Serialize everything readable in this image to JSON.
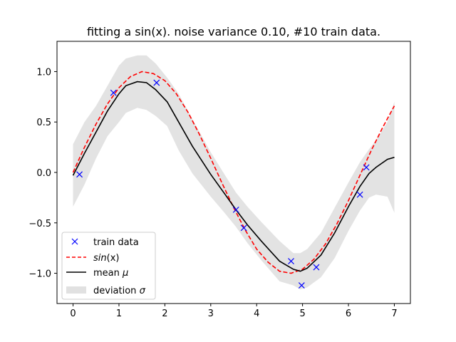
{
  "chart_data": {
    "type": "line",
    "title": "fitting a sin(x). noise variance 0.10, #10 train data.",
    "xlabel": "",
    "ylabel": "",
    "xlim": [
      -0.35,
      7.35
    ],
    "ylim": [
      -1.3,
      1.3
    ],
    "xticks": [
      0,
      1,
      2,
      3,
      4,
      5,
      6,
      7
    ],
    "xtick_labels": [
      "0",
      "1",
      "2",
      "3",
      "4",
      "5",
      "6",
      "7"
    ],
    "yticks": [
      1.0,
      0.5,
      0.0,
      -0.5,
      -1.0
    ],
    "ytick_labels": [
      "1.0",
      "0.5",
      "0.0",
      "−0.5",
      "−1.0"
    ],
    "grid": false,
    "legend_position": "lower-left",
    "colors": {
      "train": "#0000ff",
      "sin": "#ff0000",
      "mean": "#000000",
      "band": "#d9d9d9",
      "frame": "#000000"
    },
    "legend": {
      "train": "train data",
      "sin_italic": "sin",
      "sin_tail": "(x)",
      "mean_prefix": "mean ",
      "mean_symbol": "μ",
      "dev_prefix": "deviation ",
      "dev_symbol": "σ"
    },
    "train_data": {
      "x": [
        0.14,
        0.88,
        1.82,
        3.55,
        3.72,
        4.75,
        4.98,
        5.3,
        6.25,
        6.39
      ],
      "y": [
        -0.02,
        0.79,
        0.89,
        -0.37,
        -0.55,
        -0.88,
        -1.12,
        -0.94,
        -0.22,
        0.05
      ]
    },
    "sin_curve": {
      "x": [
        0.0,
        0.25,
        0.5,
        0.75,
        1.0,
        1.25,
        1.5,
        1.75,
        2.0,
        2.25,
        2.5,
        2.75,
        3.0,
        3.25,
        3.5,
        3.75,
        4.0,
        4.25,
        4.5,
        4.75,
        5.0,
        5.25,
        5.5,
        5.75,
        6.0,
        6.25,
        6.5,
        6.75,
        7.0
      ],
      "y": [
        0.0,
        0.25,
        0.48,
        0.68,
        0.84,
        0.95,
        1.0,
        0.98,
        0.91,
        0.78,
        0.6,
        0.38,
        0.14,
        -0.11,
        -0.35,
        -0.57,
        -0.76,
        -0.89,
        -0.98,
        -1.0,
        -0.96,
        -0.86,
        -0.71,
        -0.51,
        -0.28,
        -0.03,
        0.22,
        0.45,
        0.66
      ]
    },
    "mean_curve": {
      "x": [
        0.0,
        0.25,
        0.5,
        0.75,
        1.0,
        1.15,
        1.4,
        1.6,
        1.8,
        2.05,
        2.3,
        2.6,
        3.0,
        3.3,
        3.55,
        3.8,
        4.1,
        4.5,
        4.8,
        4.95,
        5.1,
        5.4,
        5.7,
        6.0,
        6.25,
        6.45,
        6.6,
        6.85,
        7.0
      ],
      "y": [
        -0.03,
        0.19,
        0.4,
        0.61,
        0.78,
        0.86,
        0.9,
        0.89,
        0.82,
        0.7,
        0.5,
        0.26,
        -0.02,
        -0.21,
        -0.37,
        -0.52,
        -0.68,
        -0.88,
        -0.96,
        -0.98,
        -0.95,
        -0.82,
        -0.6,
        -0.34,
        -0.14,
        -0.01,
        0.05,
        0.13,
        0.15
      ]
    },
    "deviation_band": {
      "x": [
        0.0,
        0.25,
        0.5,
        0.75,
        1.0,
        1.15,
        1.4,
        1.6,
        1.8,
        2.05,
        2.3,
        2.6,
        3.0,
        3.3,
        3.55,
        3.8,
        4.1,
        4.5,
        4.8,
        4.95,
        5.1,
        5.4,
        5.7,
        6.0,
        6.25,
        6.45,
        6.6,
        6.85,
        7.0
      ],
      "upper": [
        0.28,
        0.5,
        0.66,
        0.86,
        1.06,
        1.13,
        1.16,
        1.16,
        1.08,
        0.94,
        0.78,
        0.53,
        0.2,
        -0.02,
        -0.2,
        -0.34,
        -0.49,
        -0.68,
        -0.8,
        -0.8,
        -0.76,
        -0.6,
        -0.35,
        -0.1,
        0.1,
        0.23,
        0.32,
        0.5,
        0.7
      ]
    }
  }
}
